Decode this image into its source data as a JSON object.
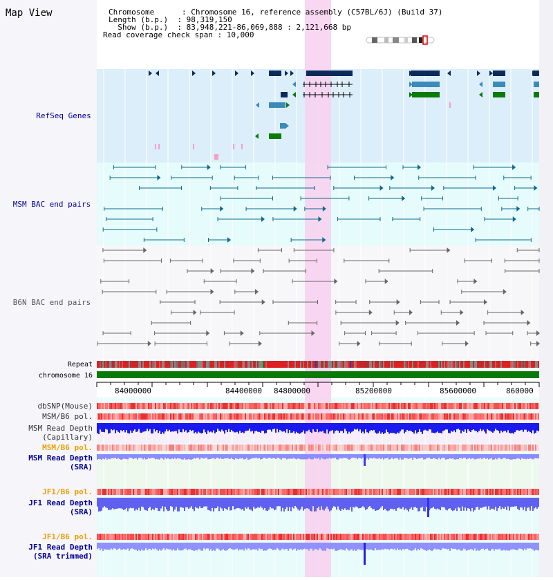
{
  "page_title": "Map View",
  "header": {
    "lines": [
      "Chromosome      : Chromosome 16, reference assembly (C57BL/6J) (Build 37)",
      "Length (b.p.)  : 98,319,150",
      "  Show (b.p.)  : 83,948,221-86,069,888 : 2,121,668 bp",
      "Read coverage check span : 10,000"
    ]
  },
  "tracks": {
    "refseq": "RefSeq Genes",
    "msm_bac": "MSM BAC end pairs",
    "b6n_bac": "B6N BAC end pairs",
    "repeat": "Repeat",
    "chromosome": "chromosome 16",
    "dbsnp": "dbSNP(Mouse)",
    "msm_b6_pol": "MSM/B6 pol.",
    "msm_depth_cap_1": "MSM Read Depth",
    "msm_depth_cap_2": "(Capillary)",
    "msm_b6_pol_2": "MSM/B6 pol.",
    "msm_depth_sra_1": "MSM Read Depth",
    "msm_depth_sra_2": "(SRA)",
    "jf1_b6_pol": "JF1/B6 pol.",
    "jf1_depth_sra_1": "JF1 Read Depth",
    "jf1_depth_sra_2": "(SRA)",
    "jf1_b6_pol_2": "JF1/B6 pol.",
    "jf1_depth_trim_1": "JF1 Read Depth",
    "jf1_depth_trim_2": "(SRA trimmed)"
  },
  "ruler": {
    "ticks": [
      "84000000",
      "84400000",
      "84800000",
      "85200000",
      "85600000",
      "860000"
    ]
  },
  "colors": {
    "label_dark": "#000000",
    "label_blue": "#000099",
    "label_orange": "#e8a000",
    "refseq_bg": "#dbeefa",
    "bac_bg": "#e6fbfb",
    "gene_navy": "#0a2a5a",
    "gene_teal": "#3c8ab8",
    "gene_green": "#0a7a0a",
    "bac_teal": "#0c6a8a",
    "bac_gray": "#666666",
    "highlight": "#f8d0f0",
    "depth_blue": "#1a1aee",
    "depth_light": "#8c8cff"
  }
}
